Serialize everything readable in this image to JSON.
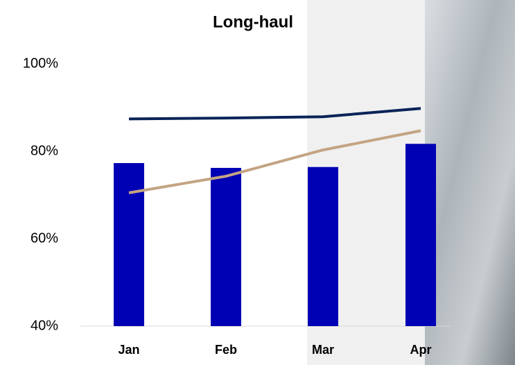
{
  "chart_data": {
    "type": "bar",
    "title": "Long-haul",
    "categories": [
      "Jan",
      "Feb",
      "Mar",
      "Apr"
    ],
    "series": [
      {
        "type": "bar",
        "color": "#0000b4",
        "values": [
          77.3,
          76.2,
          76.4,
          81.7
        ]
      },
      {
        "type": "line",
        "color": "#0a2458",
        "values": [
          87.4,
          87.6,
          87.9,
          89.8
        ]
      },
      {
        "type": "line",
        "color": "#c4a483",
        "values": [
          70.5,
          74.3,
          80.3,
          84.7
        ]
      }
    ],
    "ylim": [
      40,
      100
    ],
    "yticks": [
      {
        "value": 40,
        "label": "40%"
      },
      {
        "value": 60,
        "label": "60%"
      },
      {
        "value": 80,
        "label": "80%"
      },
      {
        "value": 100,
        "label": "100%"
      }
    ]
  }
}
